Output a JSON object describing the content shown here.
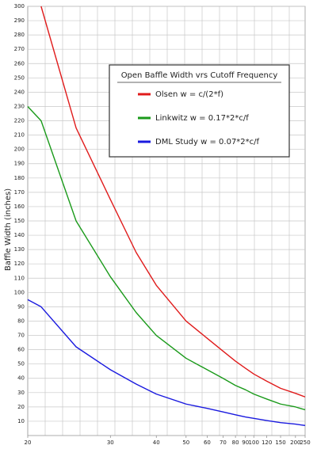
{
  "chart_data": {
    "type": "line",
    "ylabel": "Baffle Width (inches)",
    "legend_title": "Open Baffle Width vrs Cutoff Frequency",
    "legend": "top right",
    "grid": true,
    "x": [
      20,
      21.2,
      25,
      30,
      35,
      40,
      50,
      60,
      70,
      80,
      90,
      100,
      120,
      150,
      200,
      250
    ],
    "series": [
      {
        "name": "Olsen  w = c/(2*f)",
        "color": "#e01b1b",
        "values": [
          null,
          300,
          215,
          165,
          128,
          105,
          80,
          68,
          59,
          52,
          47,
          43,
          38,
          33,
          29.5,
          27
        ]
      },
      {
        "name": "Linkwitz  w = 0.17*2*c/f",
        "color": "#1a9a1a",
        "values": [
          230,
          220,
          150,
          111,
          86,
          70,
          54,
          46,
          40,
          35,
          32,
          29,
          25.5,
          22,
          20,
          18
        ]
      },
      {
        "name": "DML Study  w = 0.07*2*c/f",
        "color": "#1a1adf",
        "values": [
          95,
          90,
          62,
          46,
          36,
          29,
          22,
          19,
          16.5,
          14.5,
          13,
          12,
          10.5,
          9,
          8,
          7
        ]
      }
    ],
    "xlim": [
      20,
      250
    ],
    "xticks": [
      20,
      30,
      40,
      50,
      60,
      70,
      80,
      90,
      100,
      120,
      150,
      200,
      250
    ],
    "ylim": [
      0,
      300
    ],
    "yticks": [
      10,
      20,
      30,
      40,
      50,
      60,
      70,
      80,
      90,
      100,
      110,
      120,
      130,
      140,
      150,
      160,
      170,
      180,
      190,
      200,
      210,
      220,
      230,
      240,
      250,
      260,
      270,
      280,
      290,
      300
    ]
  }
}
